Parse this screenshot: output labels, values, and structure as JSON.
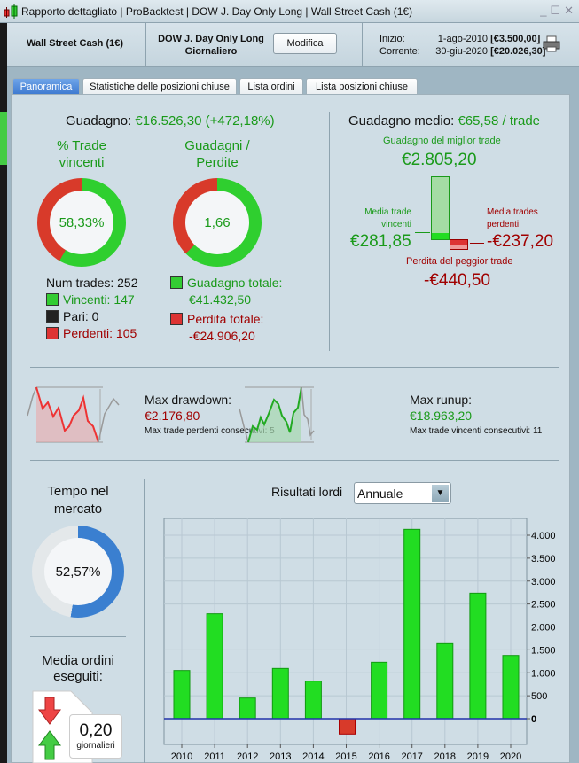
{
  "window": {
    "title": "Rapporto dettagliato | ProBacktest | DOW J. Day Only Long | Wall Street Cash (1€)"
  },
  "header": {
    "instrument": "Wall Street Cash (1€)",
    "strategy": "DOW J. Day Only Long",
    "timeframe": "Giornaliero",
    "modify_label": "Modifica",
    "start_label": "Inizio:",
    "start_date": "1-ago-2010",
    "start_value": "[€3.500,00]",
    "current_label": "Corrente:",
    "current_date": "30-giu-2020",
    "current_value": "[€20.026,30]"
  },
  "tabs": [
    {
      "label": "Panoramica",
      "active": true
    },
    {
      "label": "Statistiche delle posizioni chiuse"
    },
    {
      "label": "Lista ordini"
    },
    {
      "label": "Lista posizioni chiuse"
    }
  ],
  "summary": {
    "gain_label": "Guadagno:",
    "gain_value": "€16.526,30 (+472,18%)",
    "win_pct_title": "% Trade vincenti",
    "win_pct": "58,33%",
    "win_fraction": 0.5833,
    "ratio_title": "Guadagni / Perdite",
    "ratio": "1,66",
    "ratio_fraction": 0.625,
    "num_trades": "Num trades: 252",
    "winners": "Vincenti: 147",
    "even": "Pari: 0",
    "losers": "Perdenti: 105",
    "total_gain_label": "Guadagno totale:",
    "total_gain": "€41.432,50",
    "total_loss_label": "Perdita totale:",
    "total_loss": "-€24.906,20"
  },
  "avg": {
    "title": "Guadagno medio:",
    "value": "€65,58 / trade",
    "best_label": "Guadagno del miglior trade",
    "best": "€2.805,20",
    "avg_win_label1": "Media trade",
    "avg_win_label2": "vincenti",
    "avg_win": "€281,85",
    "avg_loss_label1": "Media trades",
    "avg_loss_label2": "perdenti",
    "avg_loss": "-€237,20",
    "worst_label": "Perdita del peggior trade",
    "worst": "-€440,50"
  },
  "drawdown": {
    "title": "Max drawdown:",
    "value": "€2.176,80",
    "consec": "Max trade perdenti consecutivi:  5"
  },
  "runup": {
    "title": "Max runup:",
    "value": "€18.963,20",
    "consec": "Max trade vincenti consecutivi: 11"
  },
  "market": {
    "title1": "Tempo nel",
    "title2": "mercato",
    "value": "52,57%",
    "fraction": 0.5257
  },
  "orders": {
    "title1": "Media ordini",
    "title2": "eseguiti:",
    "value": "0,20",
    "unit": "giornalieri"
  },
  "results": {
    "label": "Risultati lordi",
    "period": "Annuale"
  },
  "colors": {
    "green": "#22dd22",
    "red": "#dd3333",
    "blue": "#3a7fd0"
  },
  "chart_data": {
    "type": "bar",
    "title": "Risultati lordi",
    "categories": [
      "2010",
      "2011",
      "2012",
      "2013",
      "2014",
      "2015",
      "2016",
      "2017",
      "2018",
      "2019",
      "2020"
    ],
    "values": [
      1050,
      2287,
      451,
      1095,
      818,
      -335,
      1230,
      4129,
      1636,
      2737,
      1378
    ],
    "ylim": [
      -550,
      4250
    ],
    "yticks": [
      0,
      500,
      1000,
      1500,
      2000,
      2500,
      3000,
      3500,
      4000
    ],
    "ytick_labels": [
      "0",
      "500",
      "1.000",
      "1.500",
      "2.000",
      "2.500",
      "3.000",
      "3.500",
      "4.000"
    ],
    "grid": true
  }
}
